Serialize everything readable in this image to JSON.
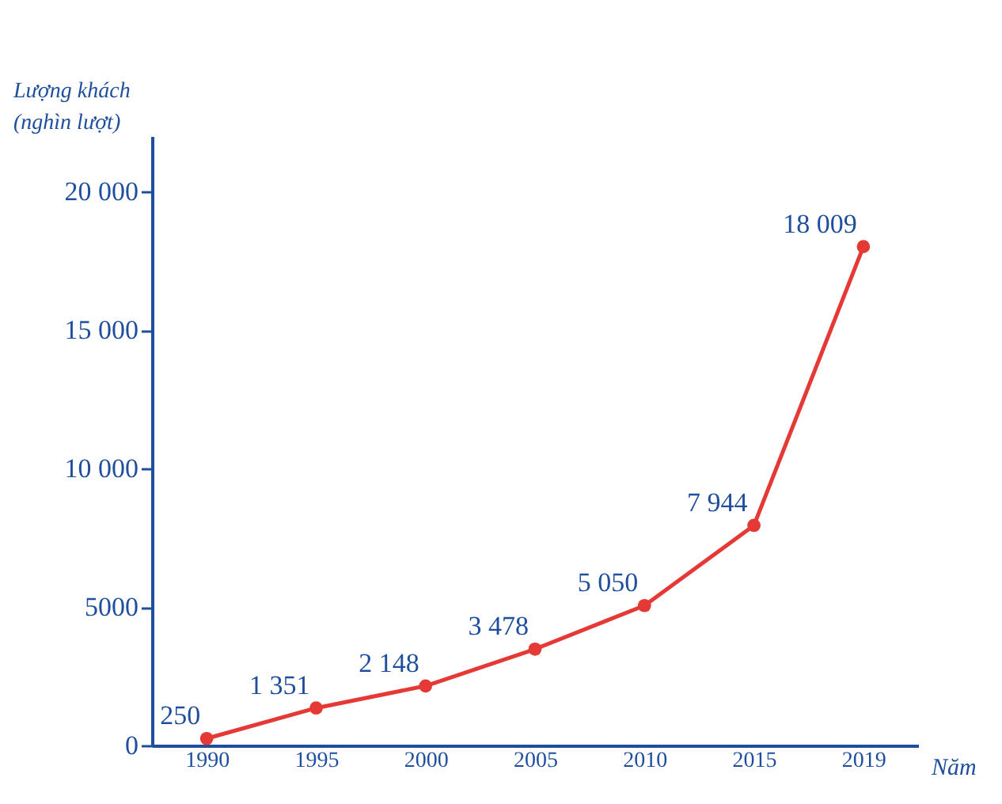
{
  "chart_data": {
    "type": "line",
    "ylabel": "Lượng khách\n(nghìn lượt)",
    "xlabel": "Năm",
    "categories": [
      "1990",
      "1995",
      "2000",
      "2005",
      "2010",
      "2015",
      "2019"
    ],
    "series": [
      {
        "color": "#e53935",
        "values": [
          250,
          1351,
          2148,
          3478,
          5050,
          7944,
          18009
        ],
        "value_labels": [
          "250",
          "1 351",
          "2 148",
          "3 478",
          "5 050",
          "7 944",
          "18 009"
        ]
      }
    ],
    "ylim": [
      0,
      22000
    ],
    "yticks": [
      0,
      {
        "value": 5000,
        "label": "5000"
      },
      {
        "value": 10000,
        "label": "10 000"
      },
      {
        "value": 15000,
        "label": "15 000"
      },
      {
        "value": 20000,
        "label": "20 000"
      }
    ],
    "grid": false,
    "marker": "circle",
    "line_style": "solid"
  }
}
